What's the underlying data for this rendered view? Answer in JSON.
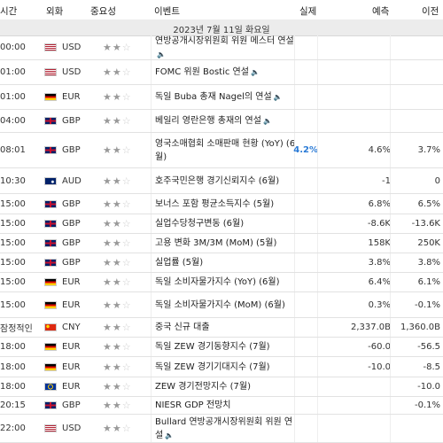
{
  "header": {
    "time": "시간",
    "currency": "외화",
    "importance": "중요성",
    "event": "이벤트",
    "actual": "실제",
    "forecast": "예측",
    "previous": "이전"
  },
  "date_label": "2023년 7월 11일 화요일",
  "rows": [
    {
      "time": "00:00",
      "currency": "USD",
      "flag": "us",
      "stars": 2,
      "event": "연방공개시장위원회 위원 메스터 연설",
      "speaker": true,
      "actual": "",
      "forecast": "",
      "previous": ""
    },
    {
      "time": "01:00",
      "currency": "USD",
      "flag": "us",
      "stars": 2,
      "event": "FOMC 위원 Bostic 연설",
      "speaker": true,
      "actual": "",
      "forecast": "",
      "previous": ""
    },
    {
      "time": "01:00",
      "currency": "EUR",
      "flag": "de",
      "stars": 2,
      "event": "독일 Buba 총재 Nagel의 연설",
      "speaker": true,
      "actual": "",
      "forecast": "",
      "previous": ""
    },
    {
      "time": "04:00",
      "currency": "GBP",
      "flag": "gb",
      "stars": 2,
      "event": "베일리 영란은행 총재의 연설",
      "speaker": true,
      "actual": "",
      "forecast": "",
      "previous": ""
    },
    {
      "time": "08:01",
      "currency": "GBP",
      "flag": "gb",
      "stars": 2,
      "event": "영국소매협회 소매판매 현황 (YoY) (6월)",
      "speaker": false,
      "actual": "4.2%",
      "forecast": "4.6%",
      "previous": "3.7%"
    },
    {
      "time": "10:30",
      "currency": "AUD",
      "flag": "au",
      "stars": 2,
      "event": "호주국민은행 경기신뢰지수 (6월)",
      "speaker": false,
      "actual": "",
      "forecast": "-1",
      "previous": "0"
    },
    {
      "time": "15:00",
      "currency": "GBP",
      "flag": "gb",
      "stars": 2,
      "event": "보너스 포함 평균소득지수 (5월)",
      "speaker": false,
      "actual": "",
      "forecast": "6.8%",
      "previous": "6.5%"
    },
    {
      "time": "15:00",
      "currency": "GBP",
      "flag": "gb",
      "stars": 2,
      "event": "실업수당청구변동 (6월)",
      "speaker": false,
      "actual": "",
      "forecast": "-8.6K",
      "previous": "-13.6K"
    },
    {
      "time": "15:00",
      "currency": "GBP",
      "flag": "gb",
      "stars": 2,
      "event": "고용 변화 3M/3M (MoM) (5월)",
      "speaker": false,
      "actual": "",
      "forecast": "158K",
      "previous": "250K"
    },
    {
      "time": "15:00",
      "currency": "GBP",
      "flag": "gb",
      "stars": 2,
      "event": "실업률 (5월)",
      "speaker": false,
      "actual": "",
      "forecast": "3.8%",
      "previous": "3.8%"
    },
    {
      "time": "15:00",
      "currency": "EUR",
      "flag": "de",
      "stars": 2,
      "event": "독일 소비자물가지수 (YoY) (6월)",
      "speaker": false,
      "actual": "",
      "forecast": "6.4%",
      "previous": "6.1%"
    },
    {
      "time": "15:00",
      "currency": "EUR",
      "flag": "de",
      "stars": 2,
      "event": "독일 소비자물가지수 (MoM) (6월)",
      "speaker": false,
      "actual": "",
      "forecast": "0.3%",
      "previous": "-0.1%"
    },
    {
      "time": "잠정적인",
      "currency": "CNY",
      "flag": "cn",
      "stars": 2,
      "event": "중국 신규 대출",
      "speaker": false,
      "actual": "",
      "forecast": "2,337.0B",
      "previous": "1,360.0B"
    },
    {
      "time": "18:00",
      "currency": "EUR",
      "flag": "de",
      "stars": 2,
      "event": "독일 ZEW 경기동향지수 (7월)",
      "speaker": false,
      "actual": "",
      "forecast": "-60.0",
      "previous": "-56.5"
    },
    {
      "time": "18:00",
      "currency": "EUR",
      "flag": "de",
      "stars": 2,
      "event": "독일 ZEW 경기기대지수 (7월)",
      "speaker": false,
      "actual": "",
      "forecast": "-10.0",
      "previous": "-8.5"
    },
    {
      "time": "18:00",
      "currency": "EUR",
      "flag": "eu",
      "stars": 2,
      "event": "ZEW 경기전망지수 (7월)",
      "speaker": false,
      "actual": "",
      "forecast": "",
      "previous": "-10.0"
    },
    {
      "time": "20:15",
      "currency": "GBP",
      "flag": "gb",
      "stars": 2,
      "event": "NIESR GDP 전망치",
      "speaker": false,
      "actual": "",
      "forecast": "",
      "previous": "-0.1%"
    },
    {
      "time": "22:00",
      "currency": "USD",
      "flag": "us",
      "stars": 2,
      "event": "Bullard 연방공개시장위원회 위원 연설",
      "speaker": true,
      "actual": "",
      "forecast": "",
      "previous": ""
    }
  ]
}
